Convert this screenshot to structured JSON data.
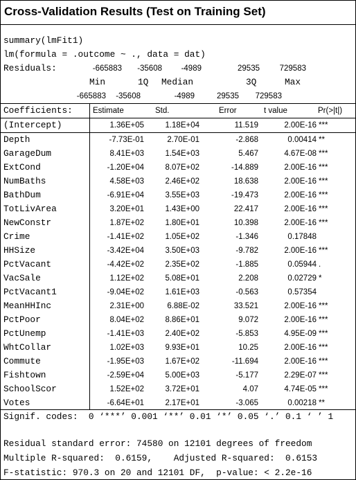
{
  "title": "Cross-Validation Results (Test on Training Set)",
  "code_lines": [
    "summary(lmFit1)",
    "lm(formula = .outcome ~ ., data = dat)"
  ],
  "residuals": {
    "label": "Residuals:",
    "row1": [
      "-665883",
      "-35608",
      "-4989",
      "29535",
      "729583"
    ],
    "quantile_labels": [
      "Min",
      "1Q",
      "Median",
      "3Q",
      "Max"
    ],
    "row2": [
      "-665883",
      "-35608",
      "-4989",
      "29535",
      "729583"
    ]
  },
  "table": {
    "header": [
      "Coefficients:",
      "Estimate",
      "Std.",
      "Error",
      "t value",
      "Pr(>|t|)"
    ],
    "rows": [
      {
        "name": "(Intercept)",
        "estimate": "1.36E+05",
        "std_error": "1.18E+04",
        "t_value": "11.519",
        "p_value": "2.00E-16",
        "signif": "***"
      },
      {
        "name": "Depth",
        "estimate": "-7.73E-01",
        "std_error": "2.70E-01",
        "t_value": "-2.868",
        "p_value": "0.00414",
        "signif": "**"
      },
      {
        "name": "GarageDum",
        "estimate": "8.41E+03",
        "std_error": "1.54E+03",
        "t_value": "5.467",
        "p_value": "4.67E-08",
        "signif": "***"
      },
      {
        "name": "ExtCond",
        "estimate": "-1.20E+04",
        "std_error": "8.07E+02",
        "t_value": "-14.889",
        "p_value": "2.00E-16",
        "signif": "***"
      },
      {
        "name": "NumBaths",
        "estimate": "4.58E+03",
        "std_error": "2.46E+02",
        "t_value": "18.638",
        "p_value": "2.00E-16",
        "signif": "***"
      },
      {
        "name": "BathDum",
        "estimate": "-6.91E+04",
        "std_error": "3.55E+03",
        "t_value": "-19.473",
        "p_value": "2.00E-16",
        "signif": "***"
      },
      {
        "name": "TotLivArea",
        "estimate": "3.20E+01",
        "std_error": "1.43E+00",
        "t_value": "22.417",
        "p_value": "2.00E-16",
        "signif": "***"
      },
      {
        "name": "NewConstr",
        "estimate": "1.87E+02",
        "std_error": "1.80E+01",
        "t_value": "10.398",
        "p_value": "2.00E-16",
        "signif": "***"
      },
      {
        "name": "Crime",
        "estimate": "-1.41E+02",
        "std_error": "1.05E+02",
        "t_value": "-1.346",
        "p_value": "0.17848"
      },
      {
        "name": "HHSize",
        "estimate": "-3.42E+04",
        "std_error": "3.50E+03",
        "t_value": "-9.782",
        "p_value": "2.00E-16",
        "signif": "***"
      },
      {
        "name": "PctVacant",
        "estimate": "-4.42E+02",
        "std_error": "2.35E+02",
        "t_value": "-1.885",
        "p_value": "0.05944",
        "signif": "."
      },
      {
        "name": "VacSale",
        "estimate": "1.12E+02",
        "std_error": "5.08E+01",
        "t_value": "2.208",
        "p_value": "0.02729",
        "signif": "*"
      },
      {
        "name": "PctVacant1",
        "estimate": "-9.04E+02",
        "std_error": "1.61E+03",
        "t_value": "-0.563",
        "p_value": "0.57354"
      },
      {
        "name": "MeanHHInc",
        "estimate": "2.31E+00",
        "std_error": "6.88E-02",
        "t_value": "33.521",
        "p_value": "2.00E-16",
        "signif": "***"
      },
      {
        "name": "PctPoor",
        "estimate": "8.04E+02",
        "std_error": "8.86E+01",
        "t_value": "9.072",
        "p_value": "2.00E-16",
        "signif": "***"
      },
      {
        "name": "PctUnemp",
        "estimate": "-1.41E+03",
        "std_error": "2.40E+02",
        "t_value": "-5.853",
        "p_value": "4.95E-09",
        "signif": "***"
      },
      {
        "name": "WhtCollar",
        "estimate": "1.02E+03",
        "std_error": "9.93E+01",
        "t_value": "10.25",
        "p_value": "2.00E-16",
        "signif": "***"
      },
      {
        "name": "Commute",
        "estimate": "-1.95E+03",
        "std_error": "1.67E+02",
        "t_value": "-11.694",
        "p_value": "2.00E-16",
        "signif": "***"
      },
      {
        "name": "Fishtown",
        "estimate": "-2.59E+04",
        "std_error": "5.00E+03",
        "t_value": "-5.177",
        "p_value": "2.29E-07",
        "signif": "***"
      },
      {
        "name": "SchoolScor",
        "estimate": "1.52E+02",
        "std_error": "3.72E+01",
        "t_value": "4.07",
        "p_value": "4.74E-05",
        "signif": "***"
      },
      {
        "name": "Votes",
        "estimate": "-6.64E+01",
        "std_error": "2.17E+01",
        "t_value": "-3.065",
        "p_value": "0.00218",
        "signif": "**"
      }
    ]
  },
  "footer": {
    "signif_codes": "Signif. codes:  0 ‘***’ 0.001 ‘**’ 0.01 ‘*’ 0.05 ‘.’ 0.1 ‘ ’ 1",
    "lines": [
      "Residual standard error: 74580 on 12101 degrees of freedom",
      "Multiple R-squared:  0.6159,    Adjusted R-squared:  0.6153",
      "F-statistic: 970.3 on 20 and 12101 DF,  p-value: < 2.2e-16"
    ]
  }
}
